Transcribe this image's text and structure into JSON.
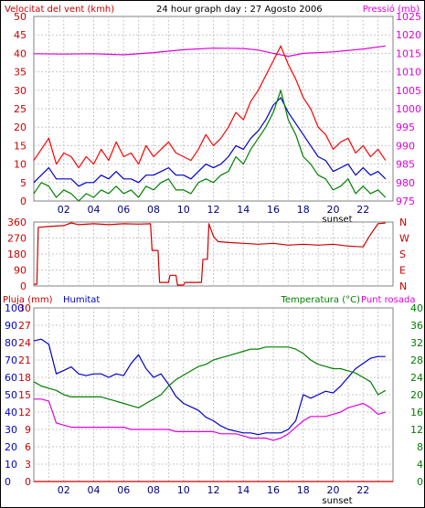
{
  "chart_data": [
    {
      "id": "wind",
      "type": "line",
      "title": "24 hour graph day : 27 Agosto 2006",
      "left_label": "Velocitat del vent (kmh)",
      "right_label": "Pressió (mb)",
      "x_ticks": [
        "02",
        "04",
        "06",
        "08",
        "10",
        "12",
        "14",
        "16",
        "18",
        "20",
        "22"
      ],
      "x_note": "sunset",
      "xlim": [
        0,
        24
      ],
      "ylim": [
        0,
        50
      ],
      "y_ticks": [
        0,
        5,
        10,
        15,
        20,
        25,
        30,
        35,
        40,
        45,
        50
      ],
      "y2lim": [
        975,
        1025
      ],
      "y2_ticks": [
        975,
        980,
        985,
        990,
        995,
        1000,
        1005,
        1010,
        1015,
        1020,
        1025
      ],
      "series": [
        {
          "axis": "right",
          "color": "#e000e0",
          "x": [
            0,
            2,
            4,
            6,
            8,
            10,
            12,
            14,
            15,
            16,
            17,
            18,
            20,
            22,
            23.5
          ],
          "y": [
            1014.9,
            1014.8,
            1014.9,
            1014.6,
            1015.2,
            1016.0,
            1016.4,
            1016.3,
            1015.9,
            1015.0,
            1014.2,
            1015.0,
            1015.4,
            1016.2,
            1017.0
          ]
        },
        {
          "axis": "left",
          "color": "#ff0000",
          "x": [
            0,
            0.5,
            1,
            1.5,
            2,
            2.5,
            3,
            3.5,
            4,
            4.5,
            5,
            5.5,
            6,
            6.5,
            7,
            7.5,
            8,
            8.5,
            9,
            9.5,
            10,
            10.5,
            11,
            11.5,
            12,
            12.5,
            13,
            13.5,
            14,
            14.5,
            15,
            15.5,
            16,
            16.5,
            17,
            17.5,
            18,
            18.5,
            19,
            19.5,
            20,
            20.5,
            21,
            21.5,
            22,
            22.5,
            23,
            23.5
          ],
          "y": [
            11,
            14,
            17,
            10,
            13,
            12,
            9,
            12,
            10,
            14,
            11,
            16,
            12,
            13,
            10,
            15,
            12,
            14,
            16,
            13,
            12,
            11,
            14,
            18,
            15,
            17,
            20,
            24,
            22,
            27,
            30,
            34,
            38,
            42,
            37,
            33,
            28,
            25,
            20,
            18,
            14,
            16,
            17,
            13,
            15,
            12,
            14,
            11
          ]
        },
        {
          "axis": "left",
          "color": "#0000cc",
          "x": [
            0,
            0.5,
            1,
            1.5,
            2,
            2.5,
            3,
            3.5,
            4,
            4.5,
            5,
            5.5,
            6,
            6.5,
            7,
            7.5,
            8,
            8.5,
            9,
            9.5,
            10,
            10.5,
            11,
            11.5,
            12,
            12.5,
            13,
            13.5,
            14,
            14.5,
            15,
            15.5,
            16,
            16.5,
            17,
            17.5,
            18,
            18.5,
            19,
            19.5,
            20,
            20.5,
            21,
            21.5,
            22,
            22.5,
            23,
            23.5
          ],
          "y": [
            5,
            7,
            9,
            6,
            6,
            6,
            4,
            5,
            5,
            7,
            6,
            8,
            6,
            6,
            5,
            7,
            7,
            8,
            9,
            7,
            7,
            6,
            8,
            10,
            9,
            10,
            12,
            15,
            14,
            17,
            19,
            22,
            26,
            28,
            24,
            21,
            18,
            15,
            12,
            11,
            8,
            9,
            10,
            7,
            9,
            7,
            8,
            6
          ]
        },
        {
          "axis": "left",
          "color": "#008000",
          "x": [
            0,
            0.5,
            1,
            1.5,
            2,
            2.5,
            3,
            3.5,
            4,
            4.5,
            5,
            5.5,
            6,
            6.5,
            7,
            7.5,
            8,
            8.5,
            9,
            9.5,
            10,
            10.5,
            11,
            11.5,
            12,
            12.5,
            13,
            13.5,
            14,
            14.5,
            15,
            15.5,
            16,
            16.5,
            17,
            17.5,
            18,
            18.5,
            19,
            19.5,
            20,
            20.5,
            21,
            21.5,
            22,
            22.5,
            23,
            23.5
          ],
          "y": [
            2,
            5,
            4,
            1,
            3,
            2,
            0,
            2,
            1,
            3,
            2,
            4,
            2,
            3,
            1,
            4,
            3,
            5,
            6,
            3,
            3,
            2,
            5,
            6,
            5,
            7,
            8,
            12,
            10,
            14,
            17,
            20,
            24,
            30,
            22,
            18,
            12,
            10,
            7,
            6,
            3,
            4,
            6,
            2,
            4,
            2,
            3,
            1
          ]
        }
      ]
    },
    {
      "id": "direction",
      "type": "line",
      "x_ticks": [
        "02",
        "04",
        "06",
        "08",
        "10",
        "12",
        "14",
        "16",
        "18",
        "20",
        "22"
      ],
      "xlim": [
        0,
        24
      ],
      "ylim": [
        0,
        360
      ],
      "y_ticks": [
        0,
        90,
        180,
        270,
        360
      ],
      "y2_ticks": [
        "N",
        "E",
        "S",
        "W",
        "N"
      ],
      "series": [
        {
          "axis": "left",
          "color": "#cc0000",
          "x": [
            0,
            0.2,
            0.3,
            1,
            2,
            2.5,
            3,
            4,
            5,
            6,
            7,
            7.8,
            7.9,
            8.3,
            8.4,
            9.0,
            9.1,
            9.5,
            9.6,
            10.0,
            10.1,
            11.2,
            11.3,
            11.6,
            11.7,
            12.0,
            12.3,
            13,
            14,
            15,
            16,
            17,
            18,
            19,
            20,
            21,
            22,
            22.5,
            23,
            23.5
          ],
          "y": [
            10,
            10,
            330,
            335,
            340,
            355,
            345,
            350,
            345,
            350,
            348,
            350,
            200,
            200,
            20,
            20,
            60,
            60,
            5,
            5,
            20,
            20,
            150,
            150,
            350,
            280,
            250,
            245,
            240,
            235,
            240,
            230,
            235,
            230,
            235,
            225,
            220,
            290,
            350,
            355
          ]
        }
      ]
    },
    {
      "id": "rain-humidity-temp",
      "type": "line",
      "left_label": "Pluja (mm)",
      "left2_label": "Humitat",
      "right_label": "Temperatura (°C)",
      "right2_label": "Punt rosada",
      "x_ticks": [
        "02",
        "04",
        "06",
        "08",
        "10",
        "12",
        "14",
        "16",
        "18",
        "20",
        "22"
      ],
      "x_note": "sunset",
      "xlim": [
        0,
        24
      ],
      "ylim_rain": [
        0,
        30
      ],
      "rain_ticks": [
        0,
        3,
        6,
        9,
        12,
        15,
        18,
        21,
        24,
        27,
        30
      ],
      "ylim_humidity": [
        0,
        100
      ],
      "humidity_ticks": [
        0,
        10,
        20,
        30,
        40,
        50,
        60,
        70,
        80,
        90,
        100
      ],
      "ylim_temp": [
        0,
        40
      ],
      "temp_ticks": [
        0,
        4,
        8,
        12,
        16,
        20,
        24,
        28,
        32,
        36,
        40
      ],
      "series": [
        {
          "axis": "rain",
          "color": "#cc0000",
          "x": [
            0,
            24
          ],
          "y": [
            0,
            0
          ]
        },
        {
          "axis": "humidity",
          "color": "#0000cc",
          "x": [
            0,
            0.5,
            1,
            1.5,
            2,
            2.5,
            3,
            3.5,
            4,
            4.5,
            5,
            5.5,
            6,
            6.5,
            7,
            7.5,
            8,
            8.5,
            9,
            9.5,
            10,
            10.5,
            11,
            11.5,
            12,
            12.5,
            13,
            13.5,
            14,
            14.5,
            15,
            15.5,
            16,
            16.5,
            17,
            17.5,
            18,
            18.5,
            19,
            19.5,
            20,
            20.5,
            21,
            21.5,
            22,
            22.5,
            23,
            23.5
          ],
          "y": [
            81,
            82,
            79,
            62,
            64,
            66,
            62,
            61,
            62,
            62,
            60,
            62,
            61,
            68,
            73,
            65,
            60,
            62,
            56,
            49,
            45,
            43,
            41,
            37,
            35,
            32,
            30,
            29,
            28,
            28,
            27,
            28,
            28,
            28,
            30,
            35,
            50,
            48,
            50,
            52,
            51,
            55,
            60,
            65,
            68,
            71,
            72,
            72
          ]
        },
        {
          "axis": "temp",
          "color": "#008000",
          "x": [
            0,
            0.5,
            1,
            1.5,
            2,
            2.5,
            3,
            3.5,
            4,
            4.5,
            5,
            5.5,
            6,
            6.5,
            7,
            7.5,
            8,
            8.5,
            9,
            9.5,
            10,
            10.5,
            11,
            11.5,
            12,
            12.5,
            13,
            13.5,
            14,
            14.5,
            15,
            15.5,
            16,
            16.5,
            17,
            17.5,
            18,
            18.5,
            19,
            19.5,
            20,
            20.5,
            21,
            21.5,
            22,
            22.5,
            23,
            23.5
          ],
          "y": [
            23,
            22,
            21.5,
            21,
            20,
            19.5,
            19.5,
            19.5,
            19.5,
            19.5,
            19,
            18.5,
            18,
            17.5,
            17,
            18,
            19,
            20,
            22,
            23.5,
            24.5,
            25.5,
            26.5,
            27,
            28,
            28.5,
            29,
            29.5,
            30,
            30.5,
            30.5,
            31,
            31,
            31,
            31,
            30.5,
            29.5,
            28,
            27,
            26.5,
            26,
            26,
            25.5,
            25,
            24,
            23,
            20,
            21
          ]
        },
        {
          "axis": "temp",
          "color": "#e000e0",
          "x": [
            0,
            0.5,
            1,
            1.5,
            2,
            2.5,
            3,
            3.5,
            4,
            4.5,
            5,
            5.5,
            6,
            6.5,
            7,
            7.5,
            8,
            8.5,
            9,
            9.5,
            10,
            10.5,
            11,
            11.5,
            12,
            12.5,
            13,
            13.5,
            14,
            14.5,
            15,
            15.5,
            16,
            16.5,
            17,
            17.5,
            18,
            18.5,
            19,
            19.5,
            20,
            20.5,
            21,
            21.5,
            22,
            22.5,
            23,
            23.5
          ],
          "y": [
            19,
            19,
            18.5,
            13.5,
            13,
            12.5,
            12.5,
            12.5,
            12.5,
            12.5,
            12.5,
            12.5,
            12.5,
            12,
            12,
            12,
            12,
            12,
            12,
            11.5,
            11.5,
            11.5,
            11.5,
            11.5,
            11.5,
            11,
            11,
            11,
            10.5,
            10,
            10,
            10,
            9.5,
            10,
            11,
            12.5,
            14,
            15,
            15,
            15,
            15.5,
            16,
            17,
            17.5,
            18,
            17,
            15.5,
            16
          ]
        }
      ]
    }
  ]
}
